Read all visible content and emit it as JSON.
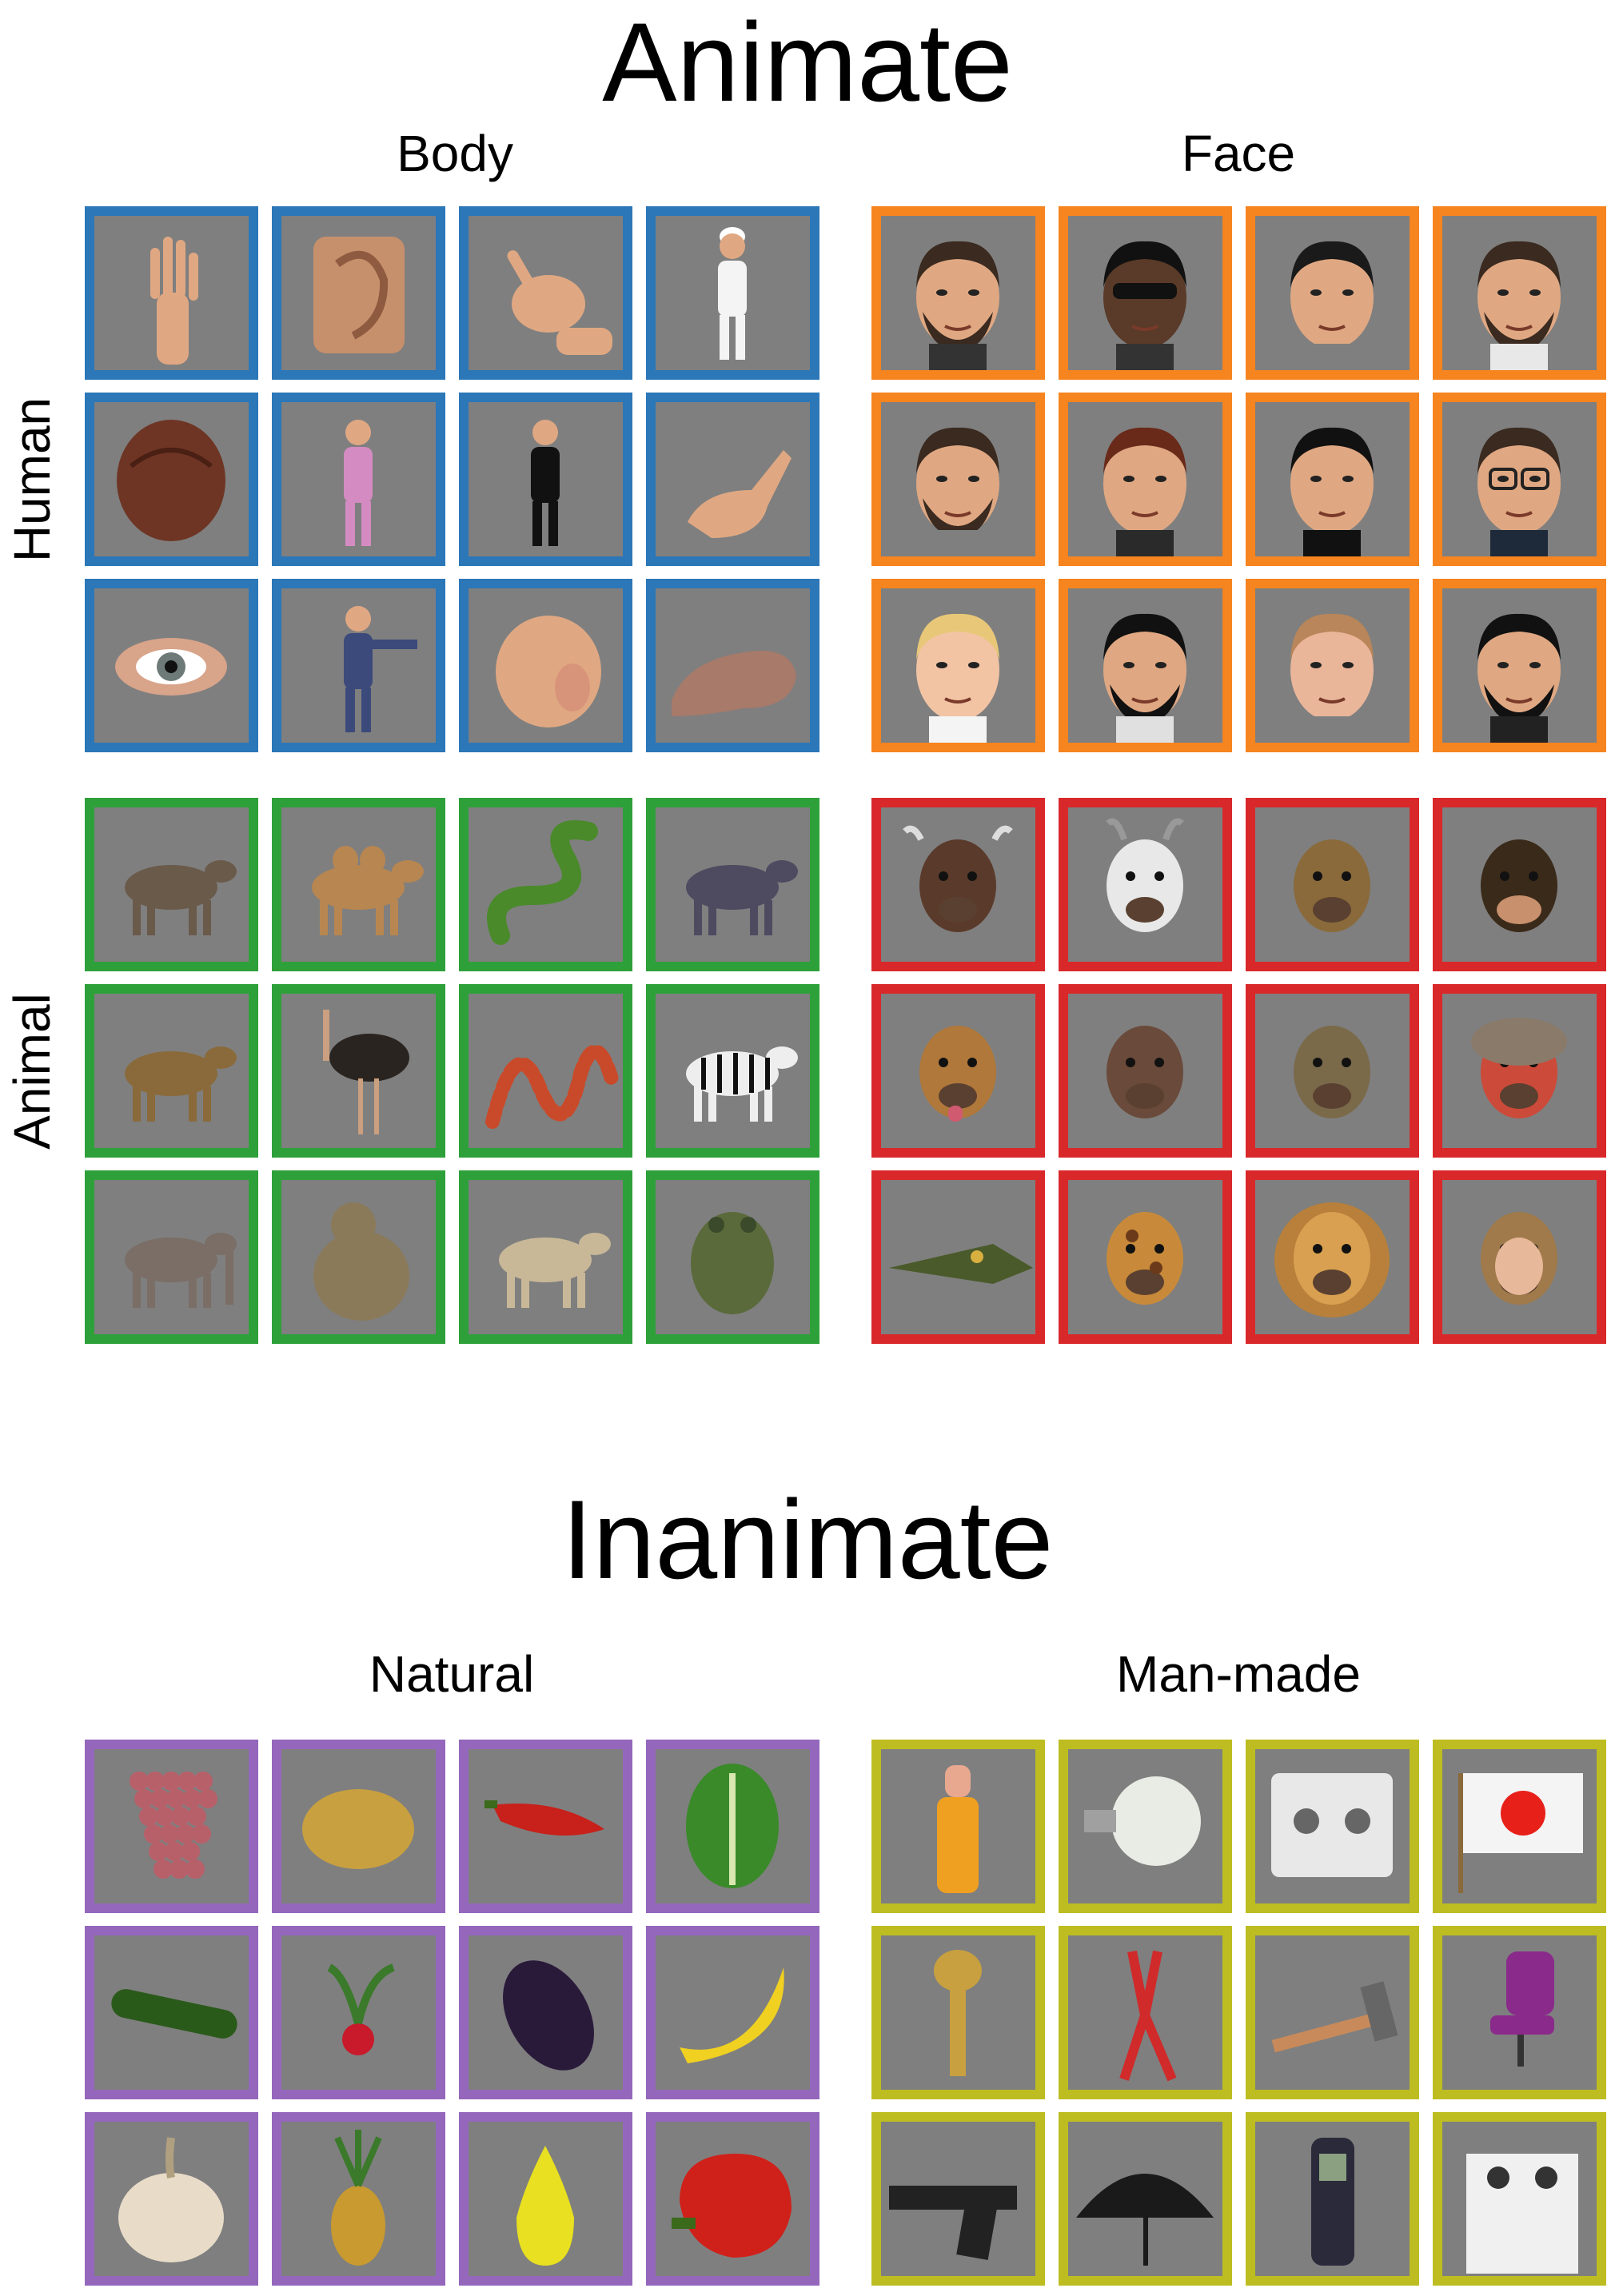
{
  "titles": {
    "animate": "Animate",
    "inanimate": "Inanimate"
  },
  "columns": {
    "body": "Body",
    "face": "Face",
    "natural": "Natural",
    "manmade": "Man-made"
  },
  "rows": {
    "human": "Human",
    "animal": "Animal"
  },
  "colors": {
    "human_body": "#2b77b8",
    "human_face": "#f6841f",
    "animal_body": "#2ea03a",
    "animal_face": "#d9282a",
    "natural": "#9467bd",
    "manmade": "#bdbd22",
    "tile_bg": "#7f7f7f"
  },
  "grids": [
    {
      "id": "human-body",
      "color_key": "human_body",
      "items": [
        "hand-icon",
        "ear-icon",
        "beckoning-hand-icon",
        "chef-icon",
        "hair-icon",
        "dancer-icon",
        "woman-standing-icon",
        "fingers-icon",
        "eye-icon",
        "man-pointing-icon",
        "pointing-fist-icon",
        "fist-icon"
      ]
    },
    {
      "id": "human-face",
      "color_key": "human_face",
      "items": [
        "face-icon",
        "face-sunglasses-icon",
        "face-profile-icon",
        "face-beard-icon",
        "face-tilted-icon",
        "face-woman-icon",
        "face-man-icon",
        "face-glasses-icon",
        "face-child-icon",
        "face-man-2-icon",
        "face-woman-2-icon",
        "face-goatee-icon"
      ]
    },
    {
      "id": "animal-body",
      "color_key": "animal_body",
      "items": [
        "armadillo-icon",
        "camel-icon",
        "snake-green-icon",
        "wolf-icon",
        "baboon-icon",
        "ostrich-icon",
        "snake-banded-icon",
        "zebra-icon",
        "elephant-icon",
        "monkey-sitting-icon",
        "sheep-icon",
        "frog-icon"
      ]
    },
    {
      "id": "animal-face",
      "color_key": "animal_face",
      "items": [
        "cow-face-icon",
        "goat-face-icon",
        "monkey-face-icon",
        "chimp-face-icon",
        "dog-face-icon",
        "great-dane-face-icon",
        "baboon-face-icon",
        "macaque-face-icon",
        "crocodile-face-icon",
        "giraffe-face-icon",
        "lion-face-icon",
        "monkey-face-2-icon"
      ]
    },
    {
      "id": "natural",
      "color_key": "natural",
      "items": [
        "grapes-icon",
        "potato-icon",
        "chili-pepper-icon",
        "lettuce-icon",
        "zucchini-icon",
        "radish-icon",
        "eggplant-icon",
        "banana-icon",
        "garlic-icon",
        "pineapple-icon",
        "pear-icon",
        "bell-pepper-icon"
      ]
    },
    {
      "id": "manmade",
      "color_key": "manmade",
      "items": [
        "baby-bottle-icon",
        "light-bulb-icon",
        "cassette-icon",
        "flag-icon",
        "key-icon",
        "pliers-icon",
        "hammer-icon",
        "office-chair-icon",
        "pistol-icon",
        "umbrella-icon",
        "mobile-phone-icon",
        "stove-icon"
      ]
    }
  ]
}
